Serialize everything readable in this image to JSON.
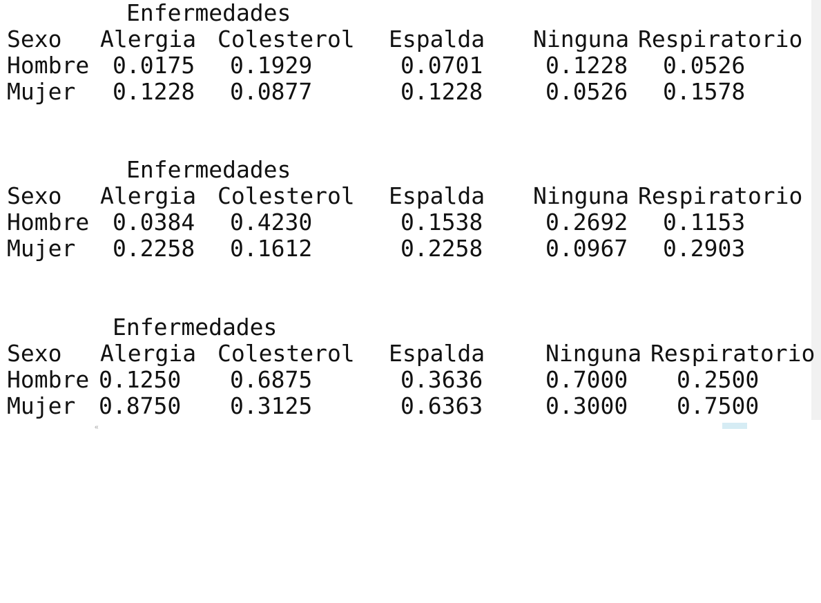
{
  "tables": [
    {
      "title": "Enfermedades",
      "row_header": "Sexo",
      "columns": [
        "Alergia",
        "Colesterol",
        "Espalda",
        "Ninguna",
        "Respiratorio"
      ],
      "rows": [
        {
          "label": "Hombre",
          "values": [
            "0.0175",
            "0.1929",
            "0.0701",
            "0.1228",
            "0.0526"
          ]
        },
        {
          "label": "Mujer",
          "values": [
            "0.1228",
            "0.0877",
            "0.1228",
            "0.0526",
            "0.1578"
          ]
        }
      ]
    },
    {
      "title": "Enfermedades",
      "row_header": "Sexo",
      "columns": [
        "Alergia",
        "Colesterol",
        "Espalda",
        "Ninguna",
        "Respiratorio"
      ],
      "rows": [
        {
          "label": "Hombre",
          "values": [
            "0.0384",
            "0.4230",
            "0.1538",
            "0.2692",
            "0.1153"
          ]
        },
        {
          "label": "Mujer",
          "values": [
            "0.2258",
            "0.1612",
            "0.2258",
            "0.0967",
            "0.2903"
          ]
        }
      ]
    },
    {
      "title": "Enfermedades",
      "row_header": "Sexo",
      "columns": [
        "Alergia",
        "Colesterol",
        "Espalda",
        "Ninguna",
        "Respiratorio"
      ],
      "rows": [
        {
          "label": "Hombre",
          "values": [
            "0.1250",
            "0.6875",
            "0.3636",
            "0.7000",
            "0.2500"
          ]
        },
        {
          "label": "Mujer",
          "values": [
            "0.8750",
            "0.3125",
            "0.6363",
            "0.3000",
            "0.7500"
          ]
        }
      ]
    }
  ],
  "footer_fragment": {
    "text": ""
  }
}
